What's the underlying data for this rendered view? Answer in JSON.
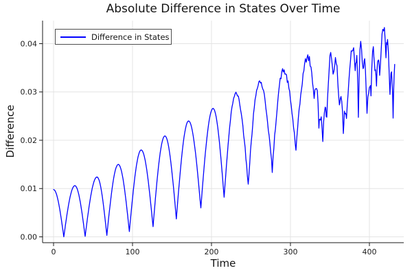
{
  "chart_data": {
    "type": "line",
    "title": "Absolute Difference in States Over Time",
    "xlabel": "Time",
    "ylabel": "Difference",
    "grid": true,
    "xlim": [
      -13.9,
      443.5
    ],
    "ylim": [
      -0.00121,
      0.04477
    ],
    "x_ticks": {
      "values": [
        0,
        100,
        200,
        300,
        400
      ],
      "labels": [
        "0",
        "100",
        "200",
        "300",
        "400"
      ]
    },
    "y_ticks": {
      "values": [
        0,
        0.01,
        0.02,
        0.03,
        0.04
      ],
      "labels": [
        "0.00",
        "0.01",
        "0.02",
        "0.03",
        "0.04"
      ]
    },
    "legend": {
      "position": "top-left",
      "entries": [
        {
          "label": "Difference in States",
          "color": "#0000ff"
        }
      ]
    },
    "series": [
      {
        "name": "Difference in States",
        "color": "#0000ff",
        "description": "Absolute difference |state1-state2|; oscillation period ~28-30, envelope growing over time, noisy after t~220. Anchors are [t, value] peaks/troughs read from the plot.",
        "anchors": [
          [
            0,
            0.0098
          ],
          [
            13,
            0.0
          ],
          [
            27,
            0.0106
          ],
          [
            40,
            0.0001
          ],
          [
            55,
            0.0124
          ],
          [
            67.5,
            0.0003
          ],
          [
            82,
            0.015
          ],
          [
            96,
            0.0011
          ],
          [
            111,
            0.018
          ],
          [
            126,
            0.0021
          ],
          [
            141,
            0.0209
          ],
          [
            155.5,
            0.0037
          ],
          [
            171,
            0.024
          ],
          [
            186.5,
            0.006
          ],
          [
            202,
            0.0266
          ],
          [
            216,
            0.0082
          ],
          [
            231,
            0.0297
          ],
          [
            246.5,
            0.0111
          ],
          [
            261,
            0.0322
          ],
          [
            277,
            0.0138
          ],
          [
            291,
            0.0344
          ],
          [
            307,
            0.018
          ],
          [
            322,
            0.0372
          ],
          [
            330,
            0.0292
          ],
          [
            333,
            0.0312
          ],
          [
            336,
            0.0228
          ],
          [
            338,
            0.0248
          ],
          [
            341,
            0.0206
          ],
          [
            344,
            0.0262
          ],
          [
            346,
            0.0246
          ],
          [
            351,
            0.0378
          ],
          [
            354,
            0.034
          ],
          [
            357,
            0.0362
          ],
          [
            362,
            0.0272
          ],
          [
            364,
            0.0292
          ],
          [
            367,
            0.0216
          ],
          [
            369,
            0.0258
          ],
          [
            371,
            0.0244
          ],
          [
            379,
            0.0393
          ],
          [
            382,
            0.0352
          ],
          [
            384,
            0.0374
          ],
          [
            386,
            0.025
          ],
          [
            389,
            0.0398
          ],
          [
            392,
            0.034
          ],
          [
            394,
            0.036
          ],
          [
            397,
            0.0253
          ],
          [
            400,
            0.0312
          ],
          [
            402,
            0.0292
          ],
          [
            405,
            0.0388
          ],
          [
            407,
            0.0352
          ],
          [
            409,
            0.0306
          ],
          [
            411,
            0.0362
          ],
          [
            413,
            0.0332
          ],
          [
            418,
            0.043
          ],
          [
            421,
            0.0375
          ],
          [
            423,
            0.0412
          ],
          [
            426,
            0.0291
          ],
          [
            428,
            0.0332
          ],
          [
            430,
            0.0255
          ],
          [
            432,
            0.0357
          ]
        ],
        "noise": {
          "onset_t": 222,
          "base_amplitude": 0.0003,
          "max_amplitude": 0.0013,
          "seed": 42
        }
      }
    ],
    "colors": {
      "line": "#0000ff",
      "grid": "#e4e4e4",
      "axis": "#1a1a1a",
      "background": "#ffffff"
    }
  }
}
